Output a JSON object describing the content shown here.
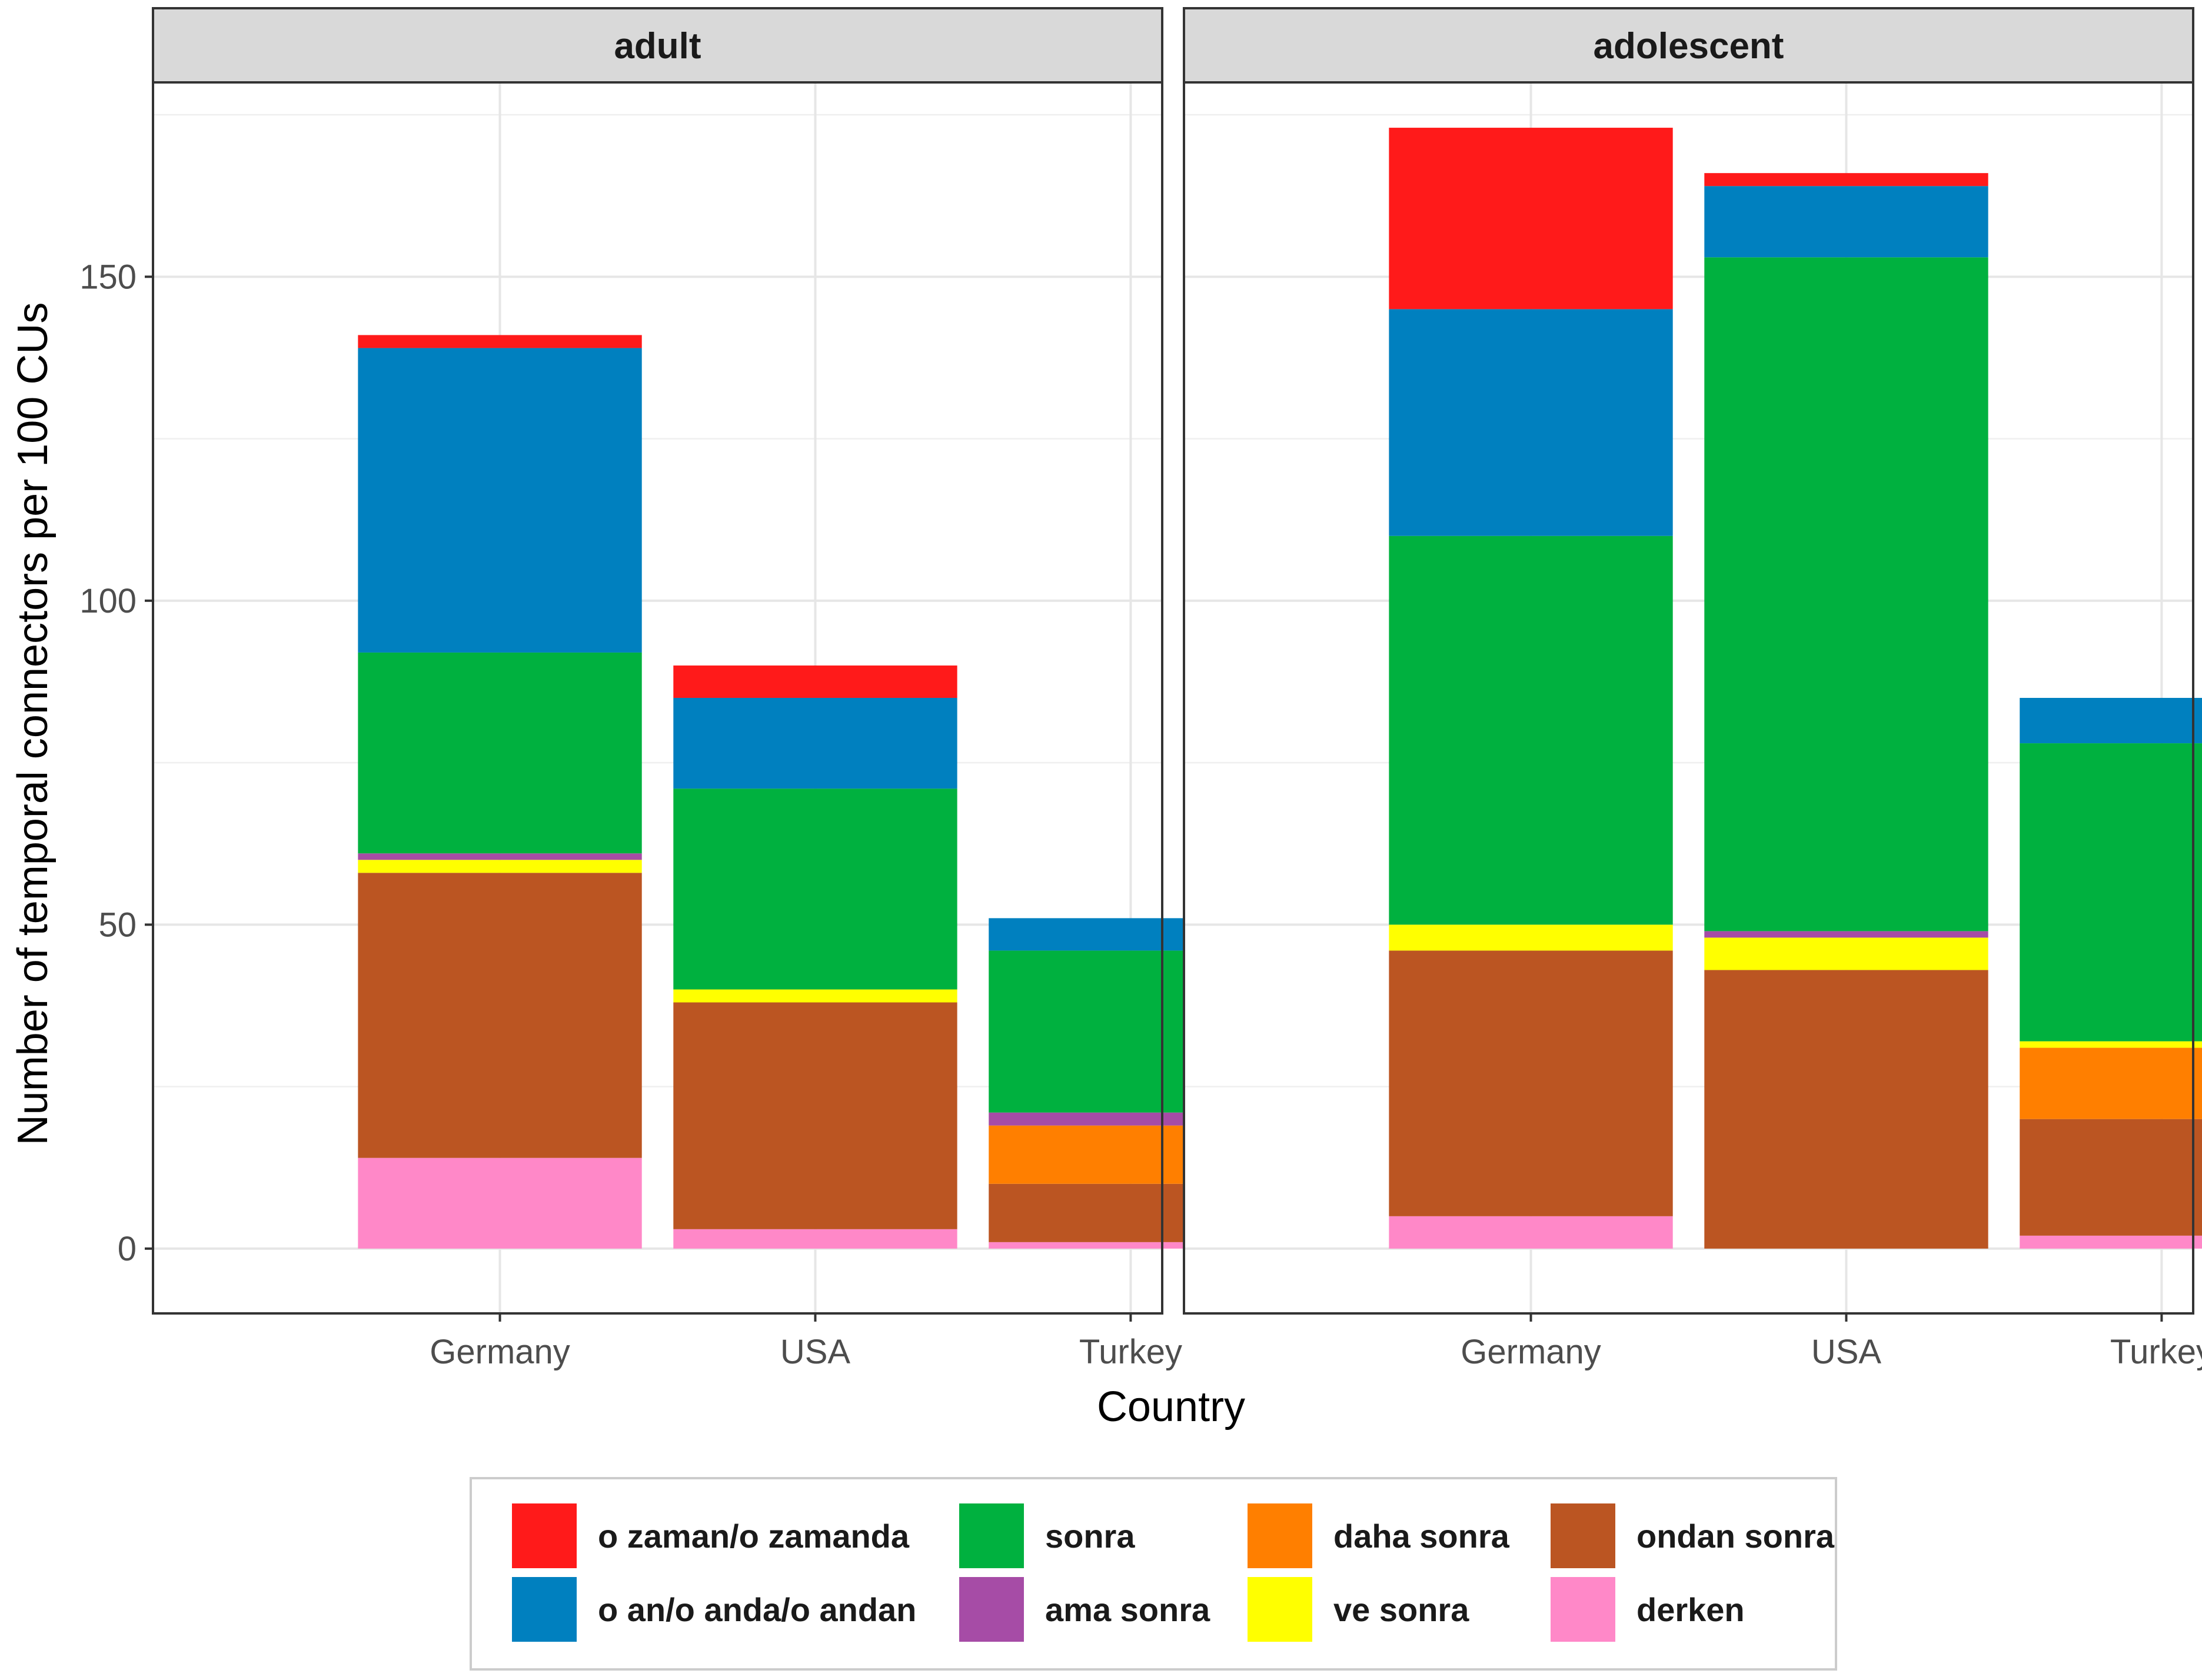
{
  "chart_data": {
    "type": "bar",
    "stacked": true,
    "xlabel": "Country",
    "ylabel": "Number of temporal connectors per 100 CUs",
    "ylim": [
      -10,
      180
    ],
    "y_ticks": [
      0,
      50,
      100,
      150
    ],
    "grid": true,
    "legend_position": "bottom",
    "categories": [
      "Germany",
      "USA",
      "Turkey"
    ],
    "series_meta": [
      {
        "key": "derken",
        "name": "derken",
        "color": "#FF88C8"
      },
      {
        "key": "ondan_sonra",
        "name": "ondan sonra",
        "color": "#BB5522"
      },
      {
        "key": "daha_sonra",
        "name": "daha sonra",
        "color": "#FF7F00"
      },
      {
        "key": "ve_sonra",
        "name": "ve sonra",
        "color": "#FFFF00"
      },
      {
        "key": "ama_sonra",
        "name": "ama sonra",
        "color": "#A64CA6"
      },
      {
        "key": "sonra",
        "name": "sonra",
        "color": "#00B13F"
      },
      {
        "key": "o_an",
        "name": "o an/o anda/o andan",
        "color": "#0080BF"
      },
      {
        "key": "o_zaman",
        "name": "o zaman/o zamanda",
        "color": "#FF1A1A"
      }
    ],
    "legend_order": [
      "o_zaman",
      "o_an",
      "sonra",
      "ama_sonra",
      "daha_sonra",
      "ve_sonra",
      "ondan_sonra",
      "derken"
    ],
    "panels": [
      {
        "label": "adult",
        "values": {
          "derken": [
            14,
            3,
            1
          ],
          "ondan_sonra": [
            44,
            35,
            9
          ],
          "daha_sonra": [
            0,
            0,
            9
          ],
          "ve_sonra": [
            2,
            2,
            0
          ],
          "ama_sonra": [
            1,
            0,
            2
          ],
          "sonra": [
            31,
            31,
            25
          ],
          "o_an": [
            47,
            14,
            5
          ],
          "o_zaman": [
            2,
            5,
            0
          ]
        }
      },
      {
        "label": "adolescent",
        "values": {
          "derken": [
            5,
            0,
            2
          ],
          "ondan_sonra": [
            41,
            43,
            18
          ],
          "daha_sonra": [
            0,
            0,
            11
          ],
          "ve_sonra": [
            4,
            5,
            1
          ],
          "ama_sonra": [
            0,
            1,
            0
          ],
          "sonra": [
            60,
            104,
            46
          ],
          "o_an": [
            35,
            11,
            7
          ],
          "o_zaman": [
            28,
            2,
            0
          ]
        }
      }
    ]
  }
}
